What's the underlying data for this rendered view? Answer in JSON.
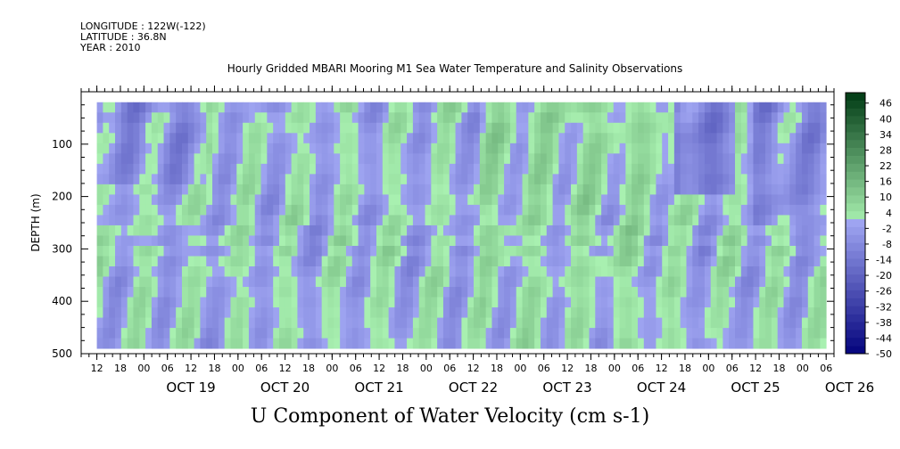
{
  "header": {
    "longitude": "LONGITUDE : 122W(-122)",
    "latitude": "LATITUDE : 36.8N",
    "year": "YEAR : 2010"
  },
  "title": "Hourly Gridded MBARI Mooring M1 Sea Water Temperature and Salinity Observations",
  "bottom_title": "U Component of Water Velocity (cm s-1)",
  "colors": {
    "negative_dark": "#00007a",
    "negative_light": "#a0a6f2",
    "positive_light": "#a8f0b0",
    "positive_dark": "#003a14"
  },
  "chart_data": {
    "type": "heatmap",
    "ylabel": "DEPTH (m)",
    "yticks": [
      100,
      200,
      300,
      400,
      500
    ],
    "ylim": [
      0,
      500
    ],
    "y_axis_inverted": true,
    "data_depth_range": [
      20,
      490
    ],
    "xlim": [
      "OCT 18 08",
      "OCT 26 08"
    ],
    "data_time_range": [
      "OCT 18 12",
      "OCT 26 06"
    ],
    "x_hour_labels": [
      "12",
      "18",
      "00",
      "06",
      "12",
      "18",
      "00",
      "06",
      "12",
      "18",
      "00",
      "06",
      "12",
      "18",
      "00",
      "06",
      "12",
      "18",
      "00",
      "06",
      "12",
      "18",
      "00",
      "06",
      "12",
      "18",
      "00",
      "06",
      "12",
      "18",
      "00",
      "06"
    ],
    "x_day_labels": [
      "OCT 19",
      "OCT 20",
      "OCT 21",
      "OCT 22",
      "OCT 23",
      "OCT 24",
      "OCT 25",
      "OCT 26"
    ],
    "colorbar": {
      "ticks": [
        "46",
        "40",
        "34",
        "28",
        "22",
        "16",
        "10",
        "4",
        "-2",
        "-8",
        "-14",
        "-20",
        "-26",
        "-32",
        "-38",
        "-44",
        "-50"
      ],
      "min": -50,
      "max": 50,
      "step": 3
    }
  }
}
